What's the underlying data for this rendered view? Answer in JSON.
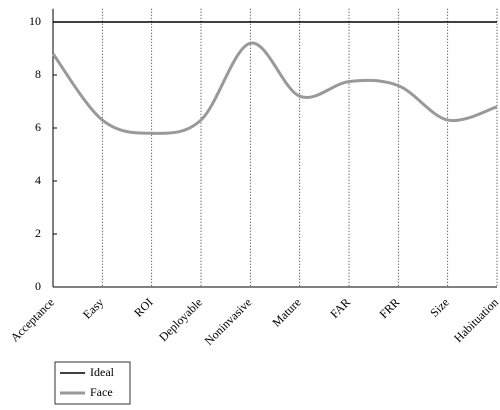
{
  "chart_data": {
    "type": "line",
    "categories": [
      "Acceptance",
      "Easy",
      "ROI",
      "Deployable",
      "Noninvasive",
      "Mature",
      "FAR",
      "FRR",
      "Size",
      "Habituation"
    ],
    "series": [
      {
        "name": "Ideal",
        "color": "#000000",
        "values": [
          10,
          10,
          10,
          10,
          10,
          10,
          10,
          10,
          10,
          10
        ]
      },
      {
        "name": "Face",
        "color": "#999999",
        "values": [
          8.8,
          6.3,
          5.8,
          6.3,
          9.2,
          7.2,
          7.75,
          7.6,
          6.3,
          6.8
        ]
      }
    ],
    "ylim": [
      0,
      10.5
    ],
    "yticks": [
      0,
      2,
      4,
      6,
      8,
      10
    ],
    "legend": "bottom-left"
  }
}
